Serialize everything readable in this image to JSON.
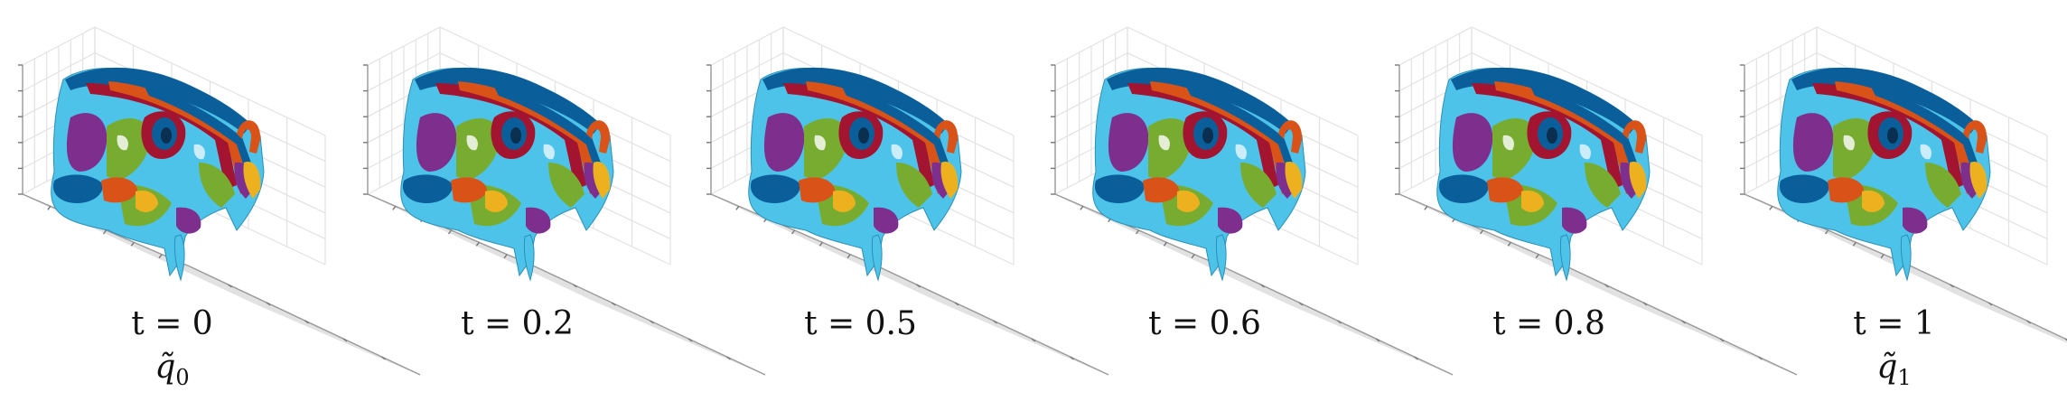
{
  "panels": [
    {
      "t_label": "t = 0",
      "q_label": "q̃",
      "q_sub": "0"
    },
    {
      "t_label": "t = 0.2",
      "q_label": "",
      "q_sub": ""
    },
    {
      "t_label": "t = 0.5",
      "q_label": "",
      "q_sub": ""
    },
    {
      "t_label": "t = 0.6",
      "q_label": "",
      "q_sub": ""
    },
    {
      "t_label": "t = 0.8",
      "q_label": "",
      "q_sub": ""
    },
    {
      "t_label": "t = 1",
      "q_label": "q̃",
      "q_sub": "1"
    }
  ],
  "colors": {
    "blue": "#0a5f9a",
    "cyan": "#4ec3ea",
    "purple": "#7e2f8e",
    "green": "#77ac30",
    "red": "#a2142f",
    "orange": "#d95319",
    "yellow": "#edb120"
  }
}
